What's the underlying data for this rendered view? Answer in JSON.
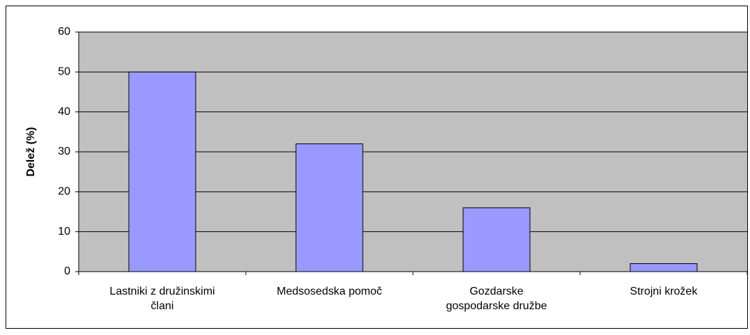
{
  "chart_data": {
    "type": "bar",
    "y_label": "Delež (%)",
    "categories": [
      "Lastniki z družinskimi\nčlani",
      "Medsosedska pomoč",
      "Gozdarske\ngospodarske družbe",
      "Strojni krožek"
    ],
    "values": [
      50,
      32,
      16,
      2
    ],
    "color": "#9999ff",
    "ylim": [
      0,
      60
    ],
    "yticks": [
      0,
      10,
      20,
      30,
      40,
      50,
      60
    ],
    "grid": true
  }
}
